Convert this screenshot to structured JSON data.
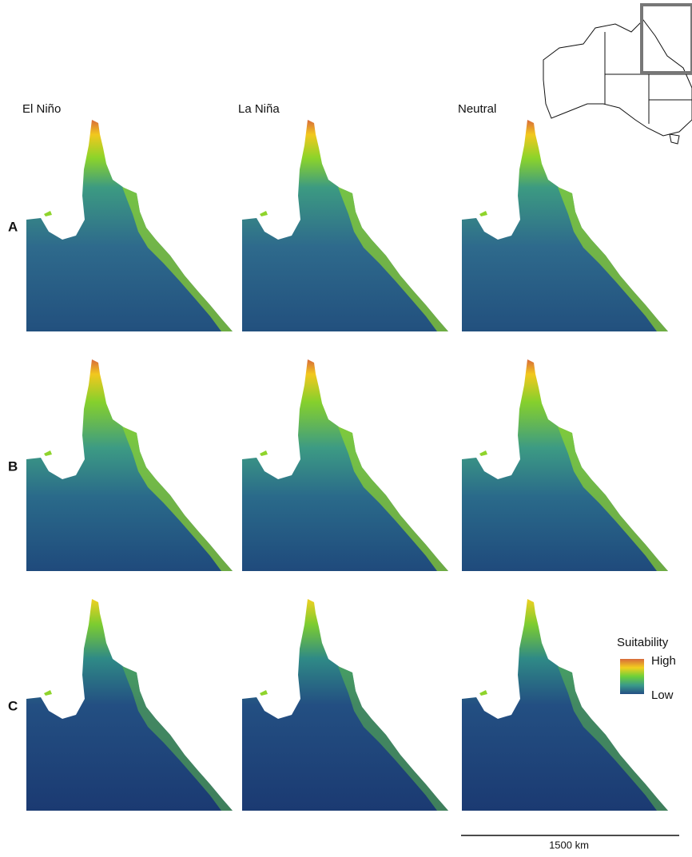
{
  "columns": [
    "El Niño",
    "La Niña",
    "Neutral"
  ],
  "rows": [
    "A",
    "B",
    "C"
  ],
  "legend": {
    "title": "Suitability",
    "high": "High",
    "low": "Low"
  },
  "scale_bar": "1500 km"
}
